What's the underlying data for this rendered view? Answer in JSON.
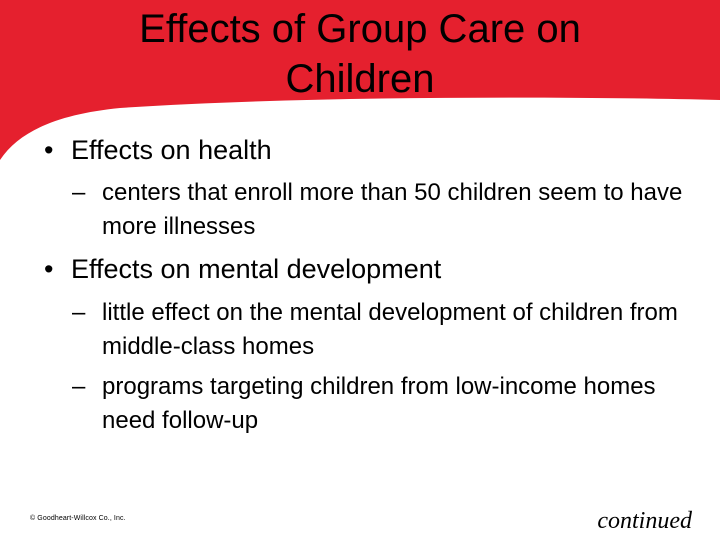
{
  "slide": {
    "title_line1": "Effects of Group Care on",
    "title_line2": "Children",
    "bullets": [
      {
        "label": "Effects on health",
        "subs": [
          "centers that enroll more than 50 children seem to have more illnesses"
        ]
      },
      {
        "label": "Effects on mental development",
        "subs": [
          "little effect on the mental development of children from middle-class homes",
          "programs targeting children from low-income homes need follow-up"
        ]
      }
    ],
    "bullet_mark": "•",
    "sub_mark": "–",
    "footer_copyright": "© Goodheart-Willcox Co., Inc.",
    "footer_continued": "continued"
  },
  "colors": {
    "header_red": "#e5202e",
    "background": "#ffffff",
    "text": "#000000"
  }
}
